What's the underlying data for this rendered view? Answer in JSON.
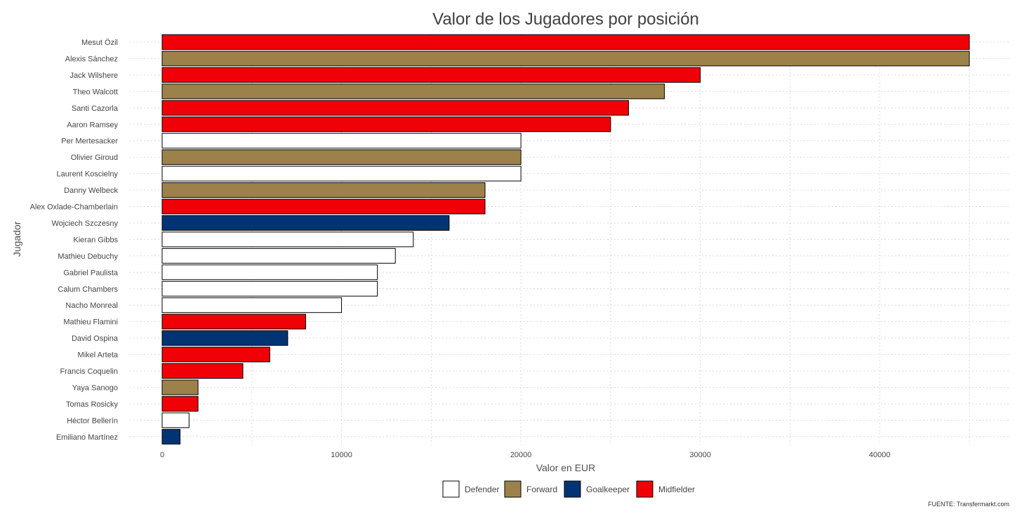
{
  "chart_data": {
    "type": "bar",
    "orientation": "horizontal",
    "title": "Valor de los Jugadores por posición",
    "xlabel": "Valor en EUR",
    "ylabel": "Jugador",
    "xlim": [
      0,
      46000
    ],
    "xticks": [
      0,
      10000,
      20000,
      30000,
      40000
    ],
    "xtick_labels": [
      "0",
      "10000",
      "20000",
      "30000",
      "40000"
    ],
    "grid": true,
    "legend_position": "bottom",
    "legend": [
      {
        "name": "Defender",
        "color": "#FFFFFF"
      },
      {
        "name": "Forward",
        "color": "#9C824A"
      },
      {
        "name": "Goalkeeper",
        "color": "#023474"
      },
      {
        "name": "Midfielder",
        "color": "#EF0107"
      }
    ],
    "bars": [
      {
        "player": "Mesut Özil",
        "value": 45000,
        "position": "Midfielder"
      },
      {
        "player": "Alexis Sánchez",
        "value": 45000,
        "position": "Forward"
      },
      {
        "player": "Jack Wilshere",
        "value": 30000,
        "position": "Midfielder"
      },
      {
        "player": "Theo Walcott",
        "value": 28000,
        "position": "Forward"
      },
      {
        "player": "Santi Cazorla",
        "value": 26000,
        "position": "Midfielder"
      },
      {
        "player": "Aaron Ramsey",
        "value": 25000,
        "position": "Midfielder"
      },
      {
        "player": "Per Mertesacker",
        "value": 20000,
        "position": "Defender"
      },
      {
        "player": "Olivier Giroud",
        "value": 20000,
        "position": "Forward"
      },
      {
        "player": "Laurent Koscielny",
        "value": 20000,
        "position": "Defender"
      },
      {
        "player": "Danny Welbeck",
        "value": 18000,
        "position": "Forward"
      },
      {
        "player": "Alex Oxlade-Chamberlain",
        "value": 18000,
        "position": "Midfielder"
      },
      {
        "player": "Wojciech Szczesny",
        "value": 16000,
        "position": "Goalkeeper"
      },
      {
        "player": "Kieran Gibbs",
        "value": 14000,
        "position": "Defender"
      },
      {
        "player": "Mathieu Debuchy",
        "value": 13000,
        "position": "Defender"
      },
      {
        "player": "Gabriel Paulista",
        "value": 12000,
        "position": "Defender"
      },
      {
        "player": "Calum Chambers",
        "value": 12000,
        "position": "Defender"
      },
      {
        "player": "Nacho Monreal",
        "value": 10000,
        "position": "Defender"
      },
      {
        "player": "Mathieu Flamini",
        "value": 8000,
        "position": "Midfielder"
      },
      {
        "player": "David Ospina",
        "value": 7000,
        "position": "Goalkeeper"
      },
      {
        "player": "Mikel Arteta",
        "value": 6000,
        "position": "Midfielder"
      },
      {
        "player": "Francis Coquelin",
        "value": 4500,
        "position": "Midfielder"
      },
      {
        "player": "Yaya Sanogo",
        "value": 2000,
        "position": "Forward"
      },
      {
        "player": "Tomas Rosicky",
        "value": 2000,
        "position": "Midfielder"
      },
      {
        "player": "Héctor Bellerín",
        "value": 1500,
        "position": "Defender"
      },
      {
        "player": "Emiliano Martínez",
        "value": 1000,
        "position": "Goalkeeper"
      }
    ],
    "caption": "FUENTE: Transfermarkt.com"
  }
}
